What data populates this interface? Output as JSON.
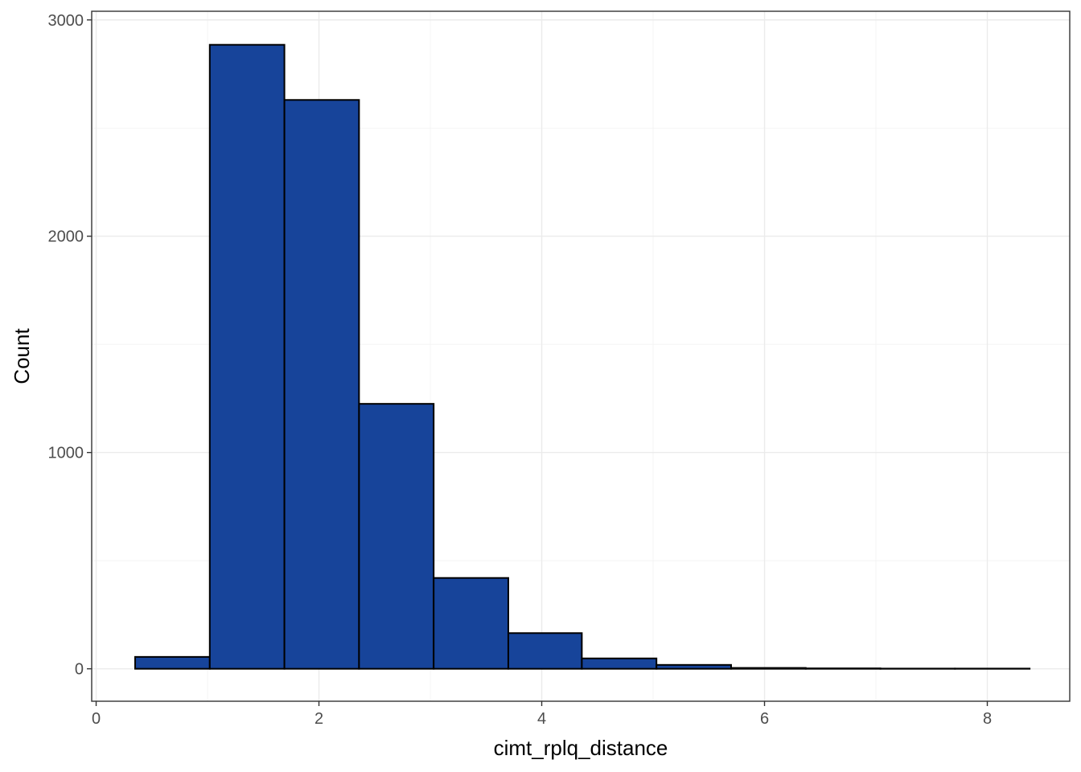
{
  "chart_data": {
    "type": "bar",
    "subtype": "histogram",
    "title": "",
    "xlabel": "cimt_rplq_distance",
    "ylabel": "Count",
    "xlim": [
      -0.04,
      8.74
    ],
    "ylim": [
      -150,
      3040
    ],
    "x_ticks": [
      0,
      2,
      4,
      6,
      8
    ],
    "x_tick_labels": [
      "0",
      "2",
      "4",
      "6",
      "8"
    ],
    "y_ticks": [
      0,
      1000,
      2000,
      3000
    ],
    "y_tick_labels": [
      "0",
      "1000",
      "2000",
      "3000"
    ],
    "grid": true,
    "theme": "bw",
    "bin_edges": [
      0.35,
      1.02,
      1.69,
      2.36,
      3.03,
      3.7,
      4.36,
      5.03,
      5.7,
      6.37,
      7.04,
      7.71,
      8.38
    ],
    "values": [
      55,
      2885,
      2630,
      1225,
      420,
      165,
      48,
      18,
      4,
      2,
      1,
      1
    ],
    "colors": {
      "fill": "#17449a",
      "outline": "#000000"
    }
  }
}
